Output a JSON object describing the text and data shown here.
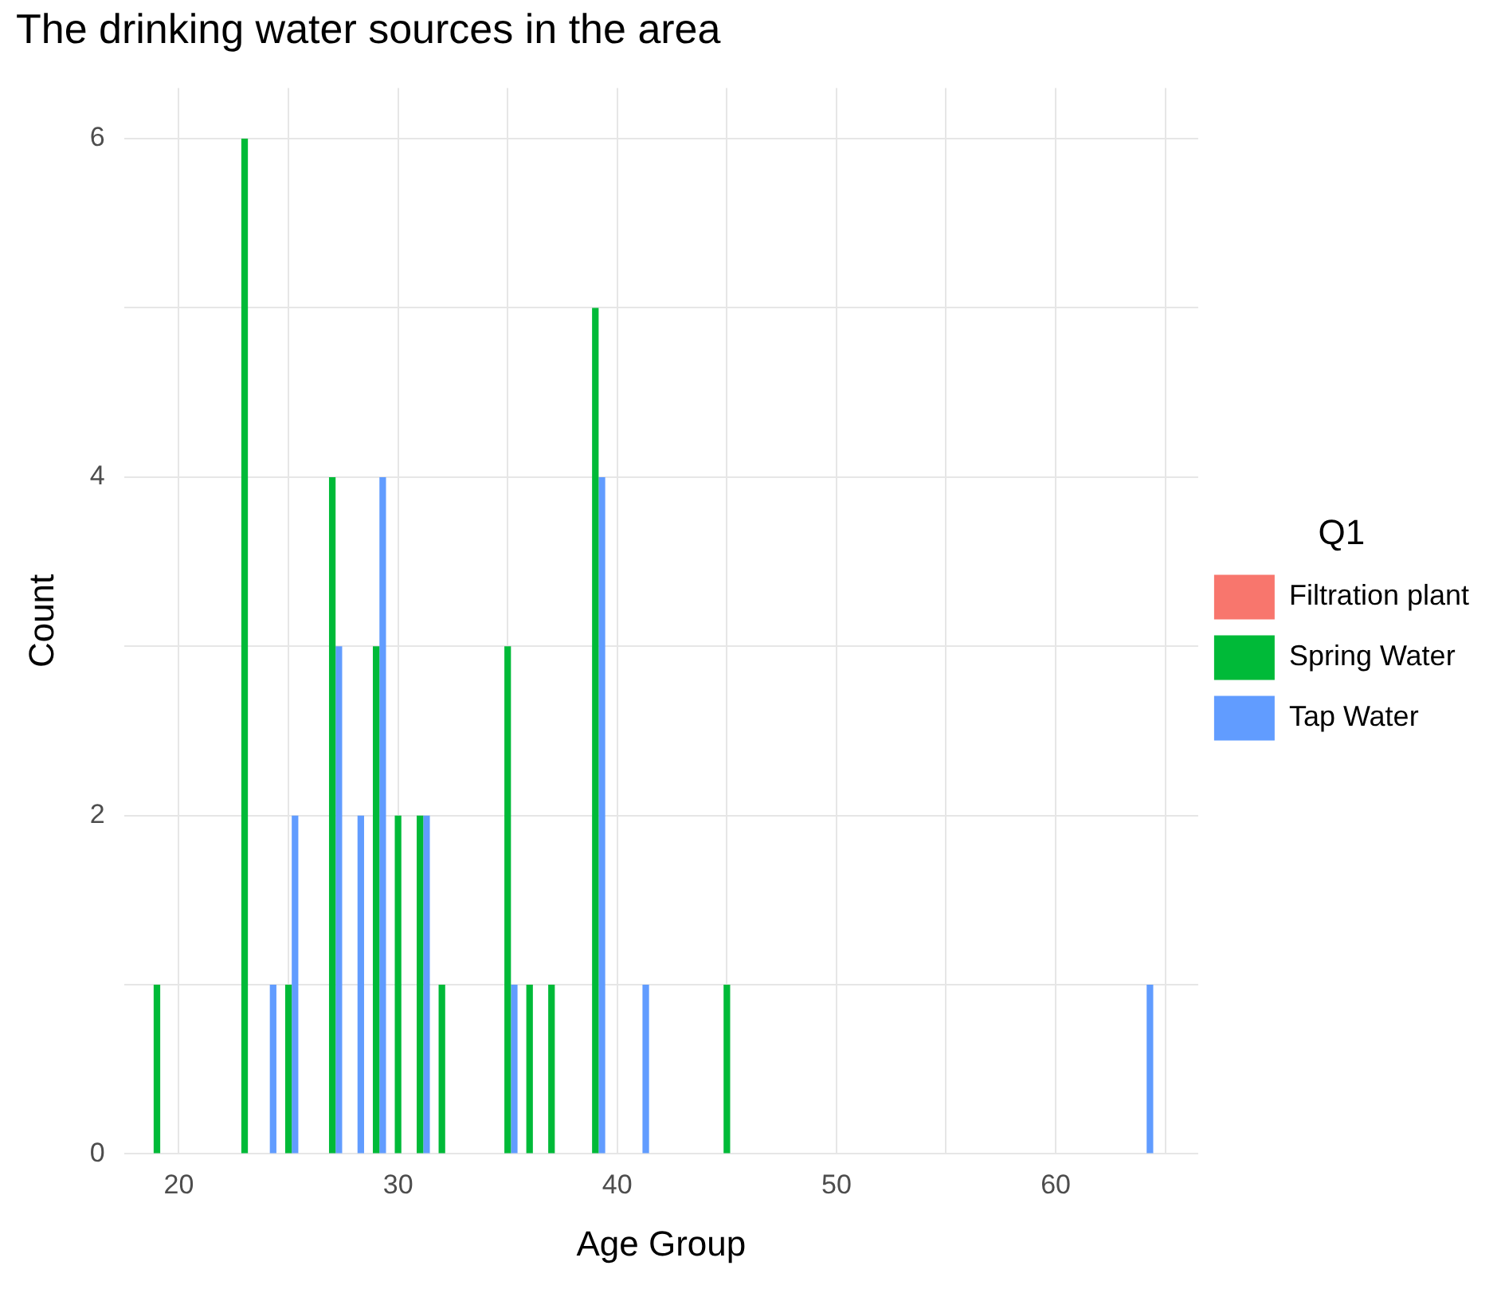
{
  "chart_data": {
    "type": "bar",
    "title": "The drinking water sources in the area",
    "xlabel": "Age Group",
    "ylabel": "Count",
    "legend_title": "Q1",
    "legend": "right",
    "grid": true,
    "x": [
      19,
      23,
      24,
      25,
      27,
      28,
      29,
      30,
      31,
      32,
      35,
      36,
      37,
      39,
      41,
      45,
      64
    ],
    "series": [
      {
        "name": "Filtration plant",
        "color": "#f8766d",
        "values": [
          null,
          null,
          null,
          null,
          null,
          null,
          null,
          null,
          null,
          null,
          null,
          null,
          null,
          null,
          null,
          null,
          null
        ]
      },
      {
        "name": "Spring Water",
        "color": "#00ba38",
        "values": [
          1,
          6,
          null,
          1,
          4,
          null,
          3,
          2,
          2,
          1,
          3,
          1,
          1,
          5,
          null,
          1,
          null
        ]
      },
      {
        "name": "Tap Water",
        "color": "#619cff",
        "values": [
          null,
          null,
          1,
          2,
          3,
          2,
          4,
          null,
          2,
          null,
          1,
          null,
          null,
          4,
          1,
          null,
          1
        ]
      }
    ],
    "xlim": [
      17.5,
      66.5
    ],
    "xticks": [
      20,
      {
        "value": 25,
        "label": null
      },
      30,
      {
        "value": 35,
        "label": null
      },
      40,
      {
        "value": 45,
        "label": null
      },
      50,
      {
        "value": 55,
        "label": null
      },
      60,
      {
        "value": 65,
        "label": null
      }
    ],
    "ylim": [
      0,
      6.3
    ],
    "yticks": [
      0,
      {
        "value": 1,
        "label": null
      },
      2,
      {
        "value": 3,
        "label": null
      },
      4,
      {
        "value": 5,
        "label": null
      },
      6
    ]
  }
}
